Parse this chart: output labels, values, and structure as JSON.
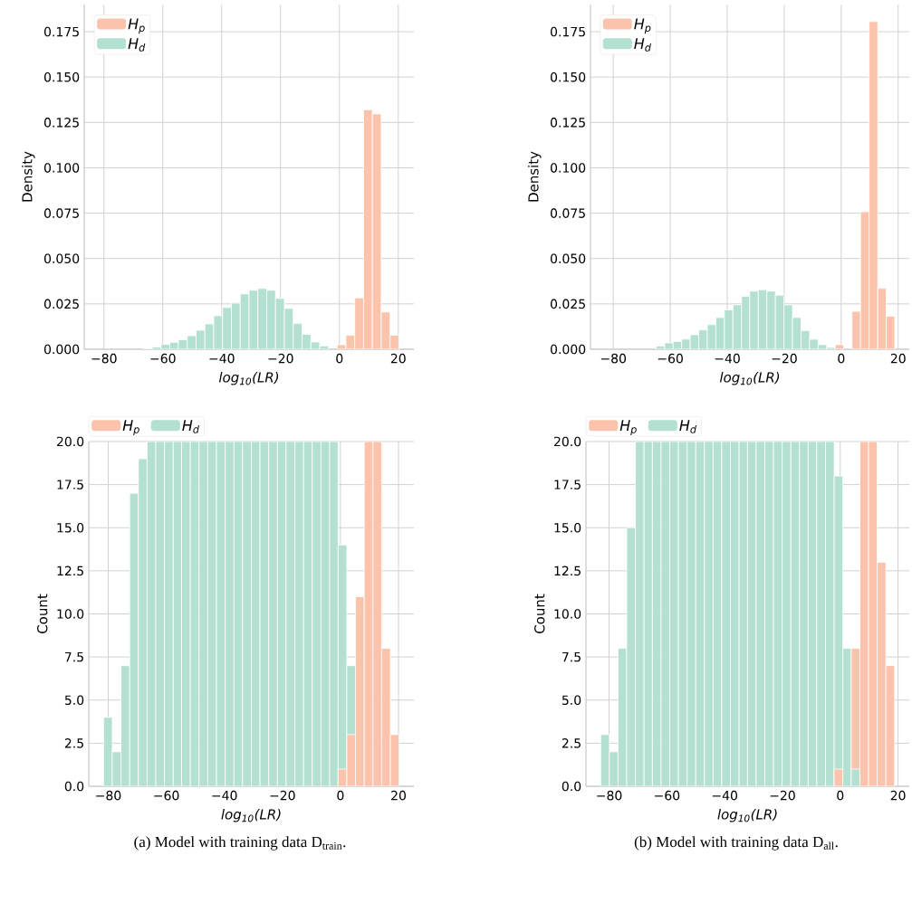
{
  "chart_data": [
    {
      "type": "histogram",
      "ylabel": "Density",
      "xlabel": "log$_{10}$(LR)",
      "grid": true,
      "legend": "top left",
      "xlim": [
        -86.7,
        25.3
      ],
      "ylim": [
        0,
        0.19
      ],
      "xticks": [
        {
          "value": -80,
          "label": "−80"
        },
        {
          "value": -60,
          "label": "−60"
        },
        {
          "value": -40,
          "label": "−40"
        },
        {
          "value": -20,
          "label": "−20"
        },
        0,
        20
      ],
      "yticks": [
        {
          "value": 0,
          "label": "0.000"
        },
        {
          "value": 0.025,
          "label": "0.025"
        },
        {
          "value": 0.05,
          "label": "0.050"
        },
        {
          "value": 0.075,
          "label": "0.075"
        },
        {
          "value": 0.1,
          "label": "0.100"
        },
        {
          "value": 0.125,
          "label": "0.125"
        },
        {
          "value": 0.15,
          "label": "0.150"
        },
        {
          "value": 0.175,
          "label": "0.175"
        }
      ],
      "bins": [
        -81.6,
        -78.6,
        -75.6,
        -72.6,
        -69.6,
        -66.6,
        -63.6,
        -60.6,
        -57.6,
        -54.7,
        -51.7,
        -48.7,
        -45.7,
        -42.7,
        -39.7,
        -36.7,
        -33.7,
        -30.7,
        -27.7,
        -24.7,
        -21.7,
        -18.7,
        -15.7,
        -12.7,
        -9.7,
        -6.7,
        -3.7,
        -0.8,
        2.2,
        5.2,
        8.2,
        11.2,
        14.2,
        17.2,
        20.2
      ],
      "series": [
        {
          "name": "H$_{p}$",
          "color": "#fcc3ac",
          "values": [
            null,
            null,
            null,
            null,
            null,
            null,
            null,
            null,
            null,
            null,
            null,
            null,
            null,
            null,
            null,
            null,
            null,
            null,
            null,
            null,
            null,
            null,
            null,
            null,
            null,
            null,
            null,
            0.0025,
            0.0077,
            0.0283,
            0.132,
            0.1297,
            0.0205,
            0.0077
          ]
        },
        {
          "name": "H$_{d}$",
          "color": "#b3e0d1",
          "values": [
            null,
            null,
            null,
            null,
            null,
            0.0003,
            0.0012,
            0.0027,
            0.0038,
            0.0053,
            0.0075,
            0.0105,
            0.014,
            0.0185,
            0.023,
            0.0255,
            0.0305,
            0.0325,
            0.0335,
            0.0325,
            0.028,
            0.0225,
            0.0143,
            0.0082,
            0.004,
            0.0018,
            null,
            null,
            null,
            null,
            null,
            null,
            null,
            null
          ]
        }
      ]
    },
    {
      "type": "histogram",
      "ylabel": "Density",
      "xlabel": "log$_{10}$(LR)",
      "grid": true,
      "legend": "top left",
      "xlim": [
        -88.0,
        23.9
      ],
      "ylim": [
        0,
        0.19
      ],
      "xticks": [
        {
          "value": -80,
          "label": "−80"
        },
        {
          "value": -60,
          "label": "−60"
        },
        {
          "value": -40,
          "label": "−40"
        },
        {
          "value": -20,
          "label": "−20"
        },
        0,
        20
      ],
      "yticks": [
        {
          "value": 0,
          "label": "0.000"
        },
        {
          "value": 0.025,
          "label": "0.025"
        },
        {
          "value": 0.05,
          "label": "0.050"
        },
        {
          "value": 0.075,
          "label": "0.075"
        },
        {
          "value": 0.1,
          "label": "0.100"
        },
        {
          "value": 0.125,
          "label": "0.125"
        },
        {
          "value": 0.15,
          "label": "0.150"
        },
        {
          "value": 0.175,
          "label": "0.175"
        }
      ],
      "bins": [
        -82.9,
        -79.9,
        -76.9,
        -73.9,
        -70.9,
        -67.9,
        -65.0,
        -62.0,
        -59.0,
        -56.0,
        -53.0,
        -50.0,
        -47.0,
        -44.0,
        -41.0,
        -38.0,
        -35.0,
        -32.1,
        -29.1,
        -26.1,
        -23.1,
        -20.1,
        -17.1,
        -14.1,
        -11.1,
        -8.1,
        -5.1,
        -2.1,
        0.9,
        3.8,
        6.8,
        9.8,
        12.8,
        15.8,
        18.8
      ],
      "series": [
        {
          "name": "H$_{p}$",
          "color": "#fcc3ac",
          "values": [
            null,
            null,
            null,
            null,
            null,
            null,
            null,
            null,
            null,
            null,
            null,
            null,
            null,
            null,
            null,
            null,
            null,
            null,
            null,
            null,
            null,
            null,
            null,
            null,
            null,
            null,
            null,
            0.0025,
            null,
            0.0209,
            0.0758,
            0.1806,
            0.0336,
            0.0182
          ]
        },
        {
          "name": "H$_{d}$",
          "color": "#b3e0d1",
          "values": [
            null,
            null,
            null,
            null,
            null,
            null,
            0.0017,
            0.0035,
            0.0043,
            0.0056,
            0.008,
            0.0106,
            0.0136,
            0.0175,
            0.0217,
            0.0245,
            0.0291,
            0.032,
            0.0328,
            0.032,
            0.0298,
            0.0245,
            0.0175,
            0.0103,
            0.0055,
            0.0025,
            0.001,
            null,
            null,
            null,
            null,
            null,
            null,
            null
          ]
        }
      ]
    },
    {
      "type": "histogram",
      "ylabel": "Count",
      "xlabel": "log$_{10}$(LR)",
      "grid": true,
      "legend": "top left",
      "annotations": [
        "(a) Model with training data D$_{train}$."
      ],
      "xlim": [
        -86.7,
        25.3
      ],
      "ylim": [
        0,
        20
      ],
      "xticks": [
        {
          "value": -80,
          "label": "−80"
        },
        {
          "value": -60,
          "label": "−60"
        },
        {
          "value": -40,
          "label": "−40"
        },
        {
          "value": -20,
          "label": "−20"
        },
        0,
        20
      ],
      "yticks": [
        {
          "value": 0,
          "label": "0.0"
        },
        {
          "value": 2.5,
          "label": "2.5"
        },
        {
          "value": 5,
          "label": "5.0"
        },
        {
          "value": 7.5,
          "label": "7.5"
        },
        {
          "value": 10,
          "label": "10.0"
        },
        {
          "value": 12.5,
          "label": "12.5"
        },
        {
          "value": 15,
          "label": "15.0"
        },
        {
          "value": 17.5,
          "label": "17.5"
        },
        {
          "value": 20,
          "label": "20.0"
        }
      ],
      "bins": [
        -81.6,
        -78.6,
        -75.6,
        -72.6,
        -69.6,
        -66.6,
        -63.6,
        -60.6,
        -57.6,
        -54.7,
        -51.7,
        -48.7,
        -45.7,
        -42.7,
        -39.7,
        -36.7,
        -33.7,
        -30.7,
        -27.7,
        -24.7,
        -21.7,
        -18.7,
        -15.7,
        -12.7,
        -9.7,
        -6.7,
        -3.7,
        -0.8,
        2.2,
        5.2,
        8.2,
        11.2,
        14.2,
        17.2,
        20.2
      ],
      "series": [
        {
          "name": "H$_{p}$",
          "color": "#fcc3ac",
          "values": [
            null,
            null,
            null,
            null,
            null,
            null,
            null,
            null,
            null,
            null,
            null,
            null,
            null,
            null,
            null,
            null,
            null,
            null,
            null,
            null,
            null,
            null,
            null,
            null,
            null,
            null,
            null,
            1,
            3,
            11,
            20,
            20,
            8,
            3
          ]
        },
        {
          "name": "H$_{d}$",
          "color": "#b3e0d1",
          "values": [
            4,
            2,
            7,
            17,
            19,
            20,
            20,
            20,
            20,
            20,
            20,
            20,
            20,
            20,
            20,
            20,
            20,
            20,
            20,
            20,
            20,
            20,
            20,
            20,
            20,
            20,
            20,
            14,
            7,
            null,
            null,
            null,
            null,
            null
          ]
        }
      ]
    },
    {
      "type": "histogram",
      "ylabel": "Count",
      "xlabel": "log$_{10}$(LR)",
      "grid": true,
      "legend": "top left",
      "annotations": [
        "(b) Model with training data D$_{all}$."
      ],
      "xlim": [
        -88.0,
        23.9
      ],
      "ylim": [
        0,
        20
      ],
      "xticks": [
        {
          "value": -80,
          "label": "−80"
        },
        {
          "value": -60,
          "label": "−60"
        },
        {
          "value": -40,
          "label": "−40"
        },
        {
          "value": -20,
          "label": "−20"
        },
        0,
        20
      ],
      "yticks": [
        {
          "value": 0,
          "label": "0.0"
        },
        {
          "value": 2.5,
          "label": "2.5"
        },
        {
          "value": 5,
          "label": "5.0"
        },
        {
          "value": 7.5,
          "label": "7.5"
        },
        {
          "value": 10,
          "label": "10.0"
        },
        {
          "value": 12.5,
          "label": "12.5"
        },
        {
          "value": 15,
          "label": "15.0"
        },
        {
          "value": 17.5,
          "label": "17.5"
        },
        {
          "value": 20,
          "label": "20.0"
        }
      ],
      "bins": [
        -82.9,
        -79.9,
        -76.9,
        -73.9,
        -70.9,
        -67.9,
        -65.0,
        -62.0,
        -59.0,
        -56.0,
        -53.0,
        -50.0,
        -47.0,
        -44.0,
        -41.0,
        -38.0,
        -35.0,
        -32.1,
        -29.1,
        -26.1,
        -23.1,
        -20.1,
        -17.1,
        -14.1,
        -11.1,
        -8.1,
        -5.1,
        -2.1,
        0.9,
        3.8,
        6.8,
        9.8,
        12.8,
        15.8,
        18.8
      ],
      "series": [
        {
          "name": "H$_{p}$",
          "color": "#fcc3ac",
          "values": [
            null,
            null,
            null,
            null,
            null,
            null,
            null,
            null,
            null,
            null,
            null,
            null,
            null,
            null,
            null,
            null,
            null,
            null,
            null,
            null,
            null,
            null,
            null,
            null,
            null,
            null,
            null,
            1,
            null,
            8,
            20,
            20,
            13,
            7
          ]
        },
        {
          "name": "H$_{d}$",
          "color": "#b3e0d1",
          "values": [
            3,
            2,
            8,
            15,
            20,
            20,
            20,
            20,
            20,
            20,
            20,
            20,
            20,
            20,
            20,
            20,
            20,
            20,
            20,
            20,
            20,
            20,
            20,
            20,
            20,
            20,
            20,
            18,
            8,
            1,
            null,
            null,
            null,
            null
          ]
        }
      ]
    }
  ]
}
